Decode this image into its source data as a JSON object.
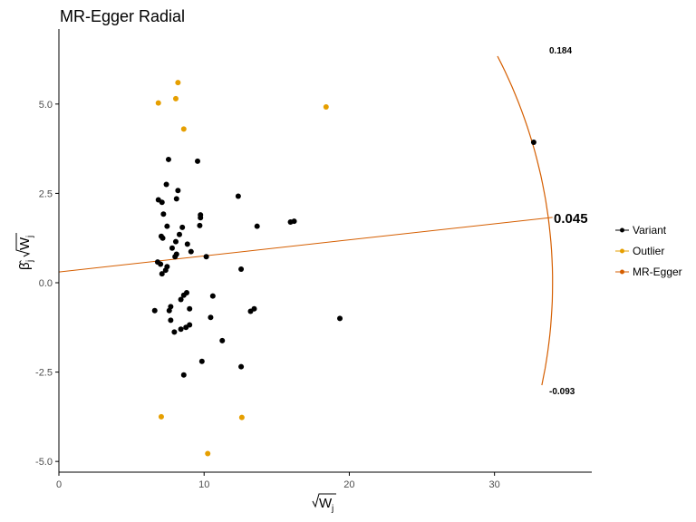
{
  "chart_data": {
    "type": "scatter",
    "title": "MR-Egger Radial",
    "xlabel": "√W",
    "xlabel_sub": "j",
    "ylabel": "β̂",
    "ylabel_sub": "j",
    "ylabel_root": "√W",
    "xlim": [
      0,
      36.7
    ],
    "ylim": [
      -5.3,
      7.1
    ],
    "x_ticks": [
      0,
      10,
      20,
      30
    ],
    "x_tick_labels": [
      "0",
      "10",
      "20",
      "30"
    ],
    "y_ticks": [
      -5,
      -2.5,
      0,
      2.5,
      5
    ],
    "y_tick_labels": [
      "-5.0",
      "-2.5",
      "0.0",
      "2.5",
      "5.0"
    ],
    "grid": false,
    "legend_position": "right",
    "colors": {
      "variant": "#000000",
      "outlier": "#E69F00",
      "egger": "#D55E00",
      "axis": "#000000",
      "tick_text": "#4d4d4d"
    },
    "series": [
      {
        "name": "Variant",
        "points": [
          [
            6.6,
            -0.78
          ],
          [
            6.8,
            0.58
          ],
          [
            6.85,
            2.32
          ],
          [
            7.0,
            0.52
          ],
          [
            7.05,
            1.3
          ],
          [
            7.1,
            2.25
          ],
          [
            7.1,
            0.25
          ],
          [
            7.15,
            1.25
          ],
          [
            7.2,
            1.92
          ],
          [
            7.35,
            0.35
          ],
          [
            7.4,
            2.75
          ],
          [
            7.45,
            0.45
          ],
          [
            7.45,
            1.58
          ],
          [
            7.55,
            3.45
          ],
          [
            7.6,
            -0.78
          ],
          [
            7.7,
            -0.67
          ],
          [
            7.7,
            -1.05
          ],
          [
            7.8,
            0.97
          ],
          [
            7.95,
            -1.38
          ],
          [
            8.0,
            0.73
          ],
          [
            8.05,
            1.15
          ],
          [
            8.1,
            0.8
          ],
          [
            8.1,
            2.35
          ],
          [
            8.2,
            2.58
          ],
          [
            8.3,
            1.35
          ],
          [
            8.4,
            -0.47
          ],
          [
            8.4,
            -1.3
          ],
          [
            8.5,
            1.55
          ],
          [
            8.6,
            -0.35
          ],
          [
            8.6,
            -2.58
          ],
          [
            8.75,
            -1.25
          ],
          [
            8.8,
            -0.28
          ],
          [
            8.85,
            1.08
          ],
          [
            9.0,
            -0.73
          ],
          [
            9.0,
            -1.18
          ],
          [
            9.1,
            0.87
          ],
          [
            9.55,
            3.4
          ],
          [
            9.7,
            1.6
          ],
          [
            9.75,
            1.82
          ],
          [
            9.75,
            1.9
          ],
          [
            9.85,
            -2.2
          ],
          [
            10.15,
            0.73
          ],
          [
            10.45,
            -0.97
          ],
          [
            10.6,
            -0.37
          ],
          [
            11.25,
            -1.62
          ],
          [
            12.35,
            2.42
          ],
          [
            12.55,
            0.38
          ],
          [
            12.55,
            -2.35
          ],
          [
            13.2,
            -0.8
          ],
          [
            13.45,
            -0.73
          ],
          [
            13.65,
            1.58
          ],
          [
            15.95,
            1.7
          ],
          [
            16.2,
            1.72
          ],
          [
            19.35,
            -1.0
          ],
          [
            32.7,
            3.93
          ]
        ]
      },
      {
        "name": "Outlier",
        "points": [
          [
            6.85,
            5.03
          ],
          [
            7.05,
            -3.75
          ],
          [
            8.05,
            5.15
          ],
          [
            8.2,
            5.6
          ],
          [
            8.6,
            4.3
          ],
          [
            10.25,
            -4.78
          ],
          [
            12.6,
            -3.77
          ],
          [
            18.4,
            4.92
          ]
        ]
      },
      {
        "name": "MR-Egger",
        "line": {
          "intercept": 0.3,
          "slope": 0.045,
          "x_range": [
            0,
            34.0
          ]
        }
      }
    ],
    "annotations": {
      "estimate": "0.045",
      "upper": "0.184",
      "lower": "-0.093"
    }
  }
}
